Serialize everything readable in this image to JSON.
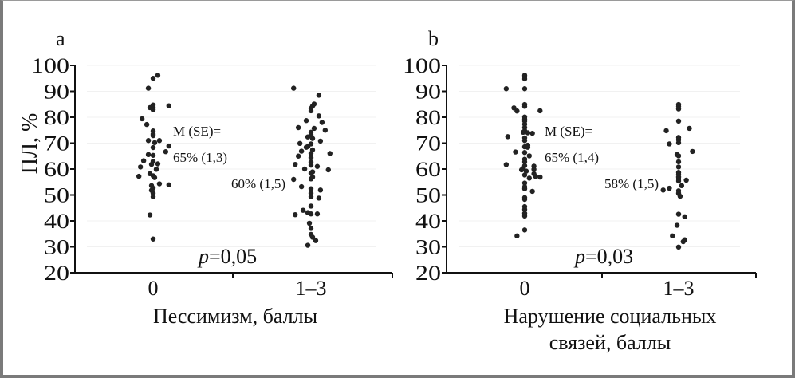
{
  "chart_data": [
    {
      "type": "scatter",
      "panel_label": "a",
      "ylabel": "ПЛ, %",
      "xlabel": [
        "Пессимизм, баллы"
      ],
      "ylim": [
        20,
        100
      ],
      "yticks": [
        20,
        30,
        40,
        50,
        60,
        70,
        80,
        90,
        100
      ],
      "categories": [
        "0",
        "1–3"
      ],
      "annotations": {
        "mse": "M (SE)=",
        "mean_0": "65% (1,3)",
        "mean_1": "60% (1,5)",
        "p_prefix": "p",
        "p_value": "=0,05"
      },
      "grid": true,
      "series": [
        {
          "name": "0",
          "points": [
            [
              0.03,
              96.2
            ],
            [
              0,
              95
            ],
            [
              -0.03,
              91.2
            ],
            [
              0,
              83.9
            ],
            [
              -0.02,
              83.7
            ],
            [
              0,
              84.7
            ],
            [
              0,
              82.9
            ],
            [
              0.1,
              84.4
            ],
            [
              -0.07,
              79.4
            ],
            [
              -0.04,
              77.2
            ],
            [
              0,
              74.7
            ],
            [
              0,
              73.5
            ],
            [
              0,
              72.9
            ],
            [
              -0.03,
              71
            ],
            [
              0.04,
              71
            ],
            [
              0.01,
              70.2
            ],
            [
              0.1,
              68.9
            ],
            [
              0,
              68.3
            ],
            [
              0.08,
              66.7
            ],
            [
              -0.03,
              65.6
            ],
            [
              0,
              65.3
            ],
            [
              -0.06,
              63.2
            ],
            [
              0,
              63
            ],
            [
              0.03,
              62
            ],
            [
              -0.01,
              61.8
            ],
            [
              -0.08,
              60.8
            ],
            [
              0.02,
              59.9
            ],
            [
              -0.02,
              58.2
            ],
            [
              0,
              57.4
            ],
            [
              -0.09,
              57.2
            ],
            [
              0.01,
              56.7
            ],
            [
              0.04,
              54.3
            ],
            [
              0.1,
              53.9
            ],
            [
              -0.01,
              53.6
            ],
            [
              0,
              52.6
            ],
            [
              -0.01,
              51.8
            ],
            [
              0,
              50.6
            ],
            [
              0,
              49.3
            ],
            [
              -0.02,
              42.3
            ],
            [
              0,
              33
            ]
          ]
        },
        {
          "name": "1–3",
          "points": [
            [
              -0.11,
              91.2
            ],
            [
              0.05,
              88.5
            ],
            [
              0.02,
              85.1
            ],
            [
              0.01,
              84.3
            ],
            [
              0,
              83.4
            ],
            [
              0,
              82.5
            ],
            [
              0.05,
              80.5
            ],
            [
              -0.03,
              78.7
            ],
            [
              0.07,
              78
            ],
            [
              -0.08,
              76
            ],
            [
              0.02,
              75.7
            ],
            [
              0.09,
              75
            ],
            [
              0,
              74.2
            ],
            [
              0,
              73.2
            ],
            [
              -0.02,
              72.4
            ],
            [
              0.01,
              71.8
            ],
            [
              0.06,
              70.8
            ],
            [
              -0.07,
              69.9
            ],
            [
              0,
              69.7
            ],
            [
              -0.02,
              68.7
            ],
            [
              -0.03,
              68.4
            ],
            [
              0.01,
              67.4
            ],
            [
              -0.06,
              66.9
            ],
            [
              0,
              66
            ],
            [
              0.12,
              66
            ],
            [
              -0.08,
              65
            ],
            [
              0,
              64.3
            ],
            [
              -0.1,
              61.8
            ],
            [
              0,
              62.6
            ],
            [
              0,
              61.5
            ],
            [
              0.04,
              61
            ],
            [
              -0.04,
              60
            ],
            [
              0.11,
              59.7
            ],
            [
              0.01,
              58.9
            ],
            [
              0,
              58.4
            ],
            [
              0.01,
              56.9
            ],
            [
              0,
              56.2
            ],
            [
              -0.11,
              56
            ],
            [
              -0.06,
              53.2
            ],
            [
              0,
              52.4
            ],
            [
              0.06,
              51.9
            ],
            [
              0,
              50.6
            ],
            [
              0,
              49.3
            ],
            [
              0.05,
              48.8
            ],
            [
              0,
              45.7
            ],
            [
              -0.05,
              44.1
            ],
            [
              -0.02,
              43.2
            ],
            [
              0,
              42.7
            ],
            [
              0.04,
              42.7
            ],
            [
              -0.1,
              42.4
            ],
            [
              -0.01,
              39.1
            ],
            [
              0,
              37.1
            ],
            [
              0,
              34.8
            ],
            [
              0.01,
              33.7
            ],
            [
              0.03,
              32.4
            ],
            [
              -0.02,
              30.6
            ]
          ]
        }
      ]
    },
    {
      "type": "scatter",
      "panel_label": "b",
      "ylabel": "",
      "xlabel": [
        "Нарушение социальных",
        "связей, баллы"
      ],
      "ylim": [
        20,
        100
      ],
      "yticks": [
        20,
        30,
        40,
        50,
        60,
        70,
        80,
        90,
        100
      ],
      "categories": [
        "0",
        "1–3"
      ],
      "annotations": {
        "mse": "M (SE)=",
        "mean_0": "65% (1,4)",
        "mean_1": "58% (1,5)",
        "p_prefix": "p",
        "p_value": "=0,03"
      },
      "grid": true,
      "series": [
        {
          "name": "0",
          "points": [
            [
              0,
              96.2
            ],
            [
              0,
              95.6
            ],
            [
              0,
              94.8
            ],
            [
              0,
              91
            ],
            [
              -0.12,
              91
            ],
            [
              0,
              84.9
            ],
            [
              0,
              84.2
            ],
            [
              -0.07,
              83.6
            ],
            [
              -0.05,
              82.4
            ],
            [
              0.1,
              82.5
            ],
            [
              0,
              80.1
            ],
            [
              0,
              79.3
            ],
            [
              0,
              78.5
            ],
            [
              0,
              77.3
            ],
            [
              0,
              76
            ],
            [
              0,
              74.8
            ],
            [
              -0.01,
              74.2
            ],
            [
              0.02,
              74
            ],
            [
              0.05,
              73.8
            ],
            [
              -0.11,
              72.5
            ],
            [
              0,
              72
            ],
            [
              0,
              71
            ],
            [
              0.02,
              69.2
            ],
            [
              0,
              68.6
            ],
            [
              0.02,
              68.4
            ],
            [
              -0.06,
              66.6
            ],
            [
              0,
              66.4
            ],
            [
              0.03,
              65.1
            ],
            [
              0,
              63.8
            ],
            [
              0,
              62.8
            ],
            [
              -0.12,
              61.7
            ],
            [
              0,
              61.3
            ],
            [
              0.06,
              61.1
            ],
            [
              -0.01,
              60.2
            ],
            [
              -0.02,
              59.7
            ],
            [
              0.01,
              59.2
            ],
            [
              0.06,
              59.9
            ],
            [
              0.06,
              58.2
            ],
            [
              0,
              57.7
            ],
            [
              0.07,
              57.2
            ],
            [
              0.1,
              56.9
            ],
            [
              0.03,
              56.5
            ],
            [
              0,
              54.6
            ],
            [
              0,
              53.1
            ],
            [
              0,
              52.4
            ],
            [
              0.05,
              51.4
            ],
            [
              0,
              49
            ],
            [
              0,
              48.3
            ],
            [
              0,
              45.5
            ],
            [
              0,
              44.4
            ],
            [
              0,
              42.9
            ],
            [
              0,
              41.9
            ],
            [
              0,
              36.5
            ],
            [
              -0.05,
              34.2
            ]
          ]
        },
        {
          "name": "1–3",
          "points": [
            [
              0,
              84.9
            ],
            [
              0,
              84.2
            ],
            [
              0,
              83.2
            ],
            [
              0,
              78.5
            ],
            [
              0.07,
              75.7
            ],
            [
              -0.08,
              74.8
            ],
            [
              0,
              72.2
            ],
            [
              0,
              71.3
            ],
            [
              0,
              70.2
            ],
            [
              -0.06,
              69.7
            ],
            [
              0.09,
              66.8
            ],
            [
              -0.01,
              65.6
            ],
            [
              0,
              65.1
            ],
            [
              0,
              62.8
            ],
            [
              0,
              60.8
            ],
            [
              0,
              58.7
            ],
            [
              0,
              57.9
            ],
            [
              0,
              56.9
            ],
            [
              0,
              56.2
            ],
            [
              0.05,
              55.7
            ],
            [
              0,
              55.4
            ],
            [
              0.02,
              53.6
            ],
            [
              -0.06,
              52.6
            ],
            [
              -0.1,
              51.9
            ],
            [
              0,
              51.6
            ],
            [
              0,
              50.6
            ],
            [
              0.01,
              49.5
            ],
            [
              0,
              42.6
            ],
            [
              0.04,
              41.6
            ],
            [
              -0.01,
              38.3
            ],
            [
              -0.04,
              34.2
            ],
            [
              0.04,
              32.7
            ],
            [
              0.03,
              32
            ],
            [
              0,
              29.9
            ]
          ]
        }
      ]
    }
  ]
}
